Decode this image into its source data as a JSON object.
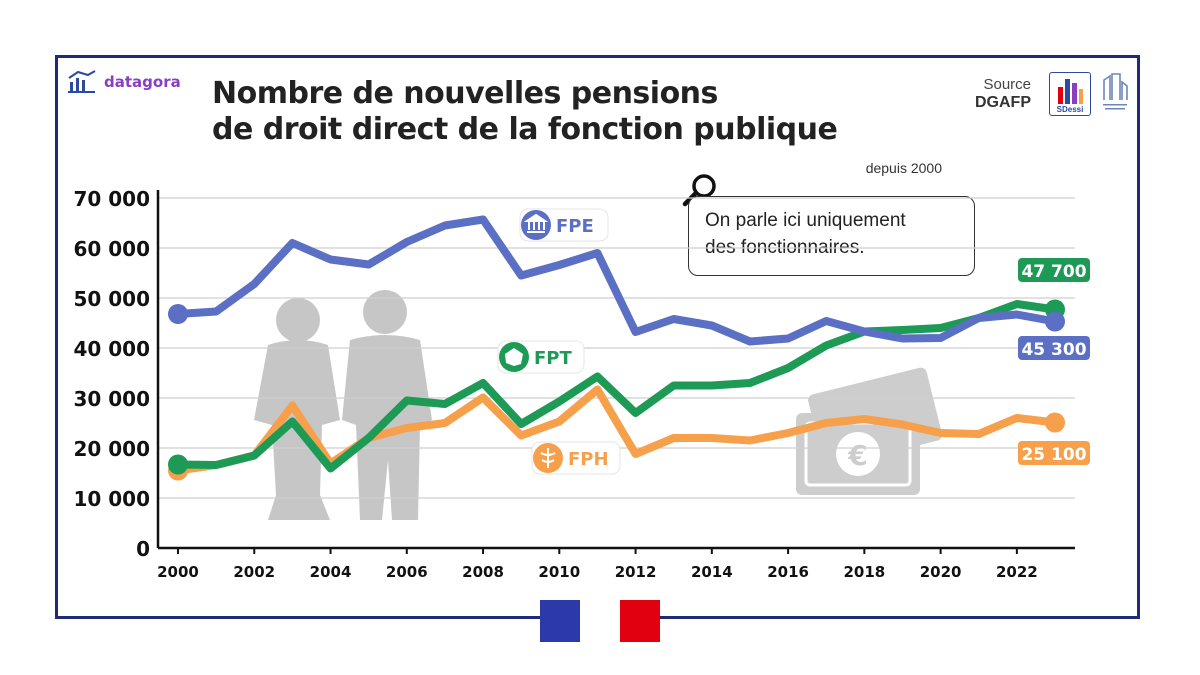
{
  "brand": {
    "name": "datagora"
  },
  "header": {
    "title_line1": "Nombre de nouvelles pensions",
    "title_line2": "de droit direct de la fonction publique",
    "subtitle": "depuis 2000"
  },
  "source": {
    "label": "Source",
    "org": "DGAFP",
    "logo_text": "SDessi"
  },
  "callout": {
    "line1": "On parle ici uniquement",
    "line2": "des fonctionnaires."
  },
  "colors": {
    "FPE": "#5b6fc4",
    "FPT": "#1e9a57",
    "FPH": "#f7a04b",
    "frame": "#1f2a78"
  },
  "chart_data": {
    "type": "line",
    "x": [
      2000,
      2001,
      2002,
      2003,
      2004,
      2005,
      2006,
      2007,
      2008,
      2009,
      2010,
      2011,
      2012,
      2013,
      2014,
      2015,
      2016,
      2017,
      2018,
      2019,
      2020,
      2021,
      2022,
      2023
    ],
    "xticks": [
      "2000",
      "2002",
      "2004",
      "2006",
      "2008",
      "2010",
      "2012",
      "2014",
      "2016",
      "2018",
      "2020",
      "2022"
    ],
    "yticks": [
      "0",
      "10 000",
      "20 000",
      "30 000",
      "40 000",
      "50 000",
      "60 000",
      "70 000"
    ],
    "ylim": [
      0,
      70000
    ],
    "grid": true,
    "series": [
      {
        "name": "FPE",
        "values": [
          46800,
          47300,
          52800,
          61000,
          57700,
          56700,
          61200,
          64500,
          65700,
          54500,
          56600,
          59000,
          43200,
          45800,
          44500,
          41300,
          41900,
          45400,
          43300,
          41900,
          42000,
          46000,
          46700,
          45300
        ],
        "end_label": "45 300"
      },
      {
        "name": "FPT",
        "values": [
          16700,
          16600,
          18500,
          25300,
          15900,
          22000,
          29500,
          28800,
          33000,
          24800,
          29300,
          34300,
          27000,
          32500,
          32500,
          33000,
          36000,
          40500,
          43300,
          43600,
          44000,
          46000,
          48800,
          47700
        ],
        "end_label": "47 700"
      },
      {
        "name": "FPH",
        "values": [
          15500,
          16600,
          18500,
          28500,
          16900,
          22000,
          24000,
          25000,
          30100,
          22500,
          25300,
          31700,
          18800,
          22000,
          22000,
          21500,
          23000,
          25000,
          25800,
          24700,
          23000,
          22800,
          26000,
          25100
        ],
        "end_label": "25 100"
      }
    ]
  }
}
